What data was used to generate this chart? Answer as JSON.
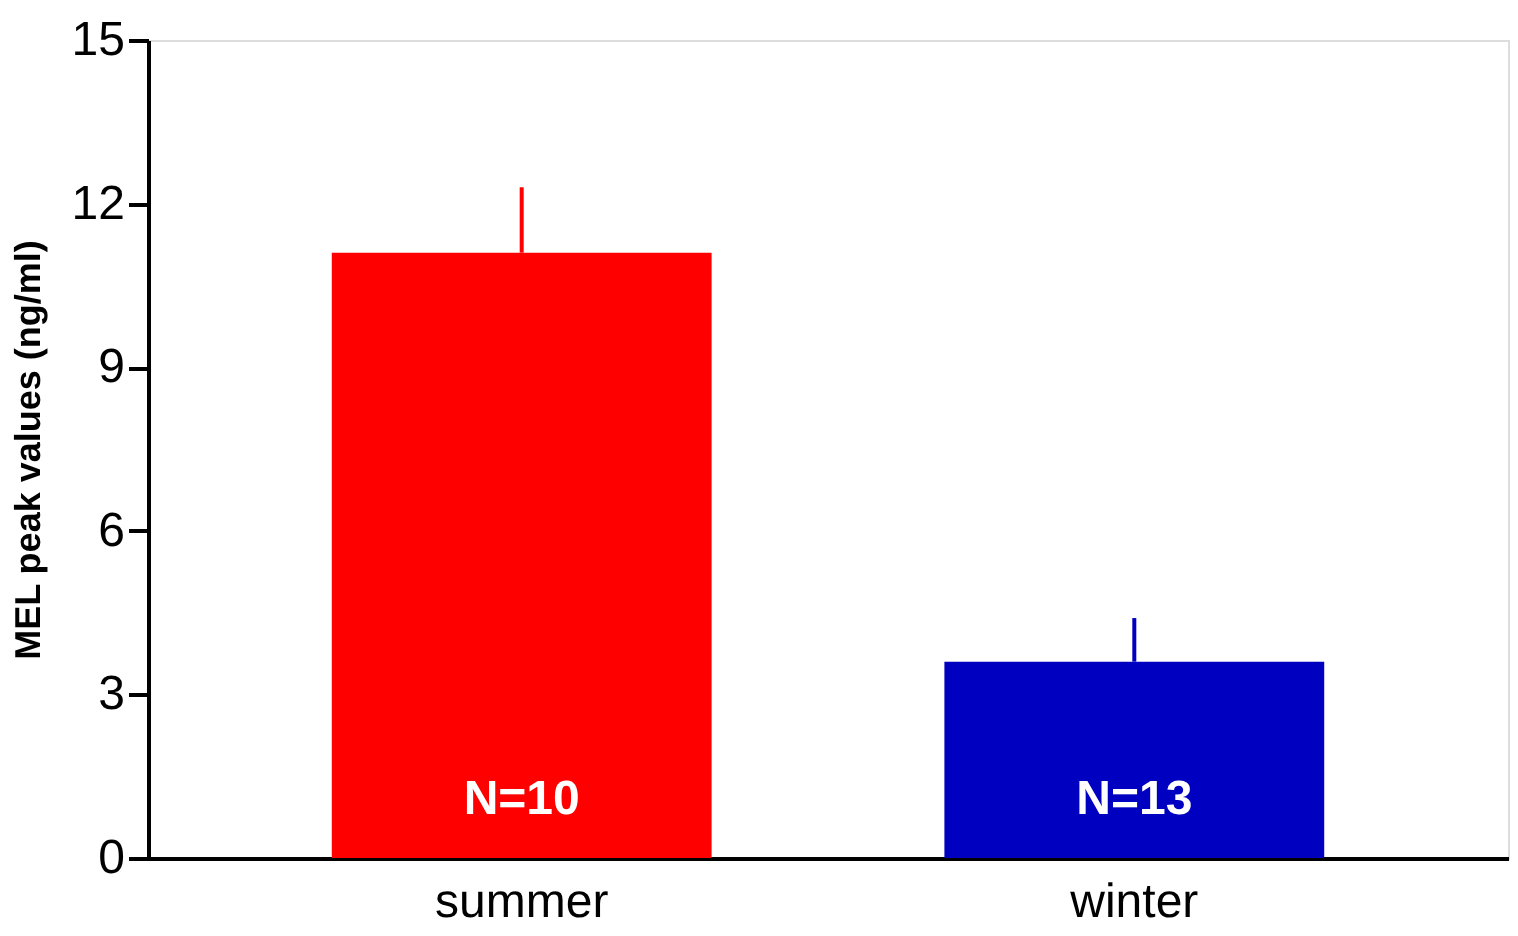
{
  "chart_data": {
    "type": "bar",
    "ylabel": "MEL peak values (ng/ml)",
    "categories": [
      "summer",
      "winter"
    ],
    "values": [
      11.1,
      3.6
    ],
    "colors": [
      "#ff0000",
      "#0000c0"
    ],
    "errors": [
      [
        11.1,
        12.3
      ],
      [
        3.6,
        4.4
      ]
    ],
    "ylim": [
      0,
      15
    ],
    "yticks": [
      0,
      3,
      6,
      9,
      12,
      15
    ],
    "grid": false,
    "annotations": [
      "N=10",
      "N=13"
    ]
  }
}
